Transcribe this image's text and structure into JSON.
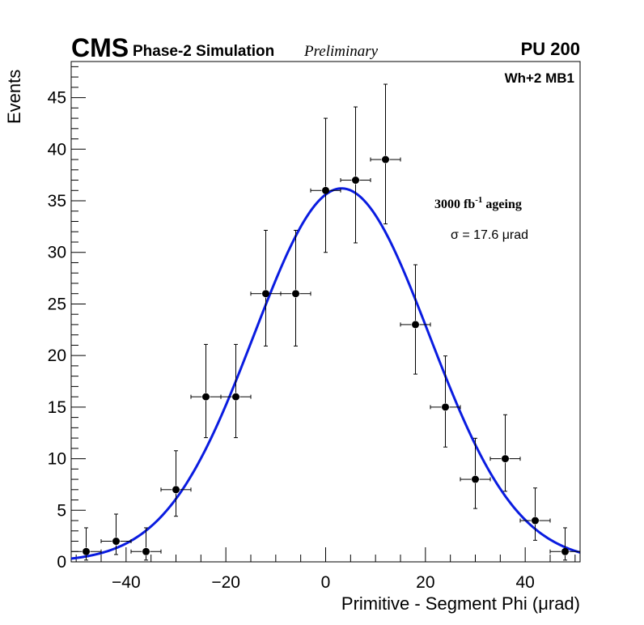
{
  "header": {
    "experiment": "CMS",
    "subtitle": "Phase-2 Simulation",
    "status": "Preliminary",
    "pileup": "PU 200",
    "station": "Wh+2 MB1"
  },
  "annotations": {
    "lumi_value": "3000 fb",
    "lumi_exponent": "-1",
    "lumi_suffix": " ageing",
    "sigma_label": "σ = 17.6 μrad"
  },
  "colors": {
    "fit": "#0a1ce0",
    "points": "#000000",
    "axis": "#000000"
  },
  "chart_data": {
    "type": "scatter",
    "title": "",
    "xlabel": "Primitive - Segment Phi (μrad)",
    "ylabel": "Events",
    "xlim": [
      -51,
      51
    ],
    "ylim": [
      0,
      48.5
    ],
    "x_ticks": [
      -40,
      -20,
      0,
      20,
      40
    ],
    "x_tick_labels": [
      "−40",
      "−20",
      "0",
      "20",
      "40"
    ],
    "y_ticks": [
      0,
      5,
      10,
      15,
      20,
      25,
      30,
      35,
      40,
      45
    ],
    "y_tick_labels": [
      "0",
      "5",
      "10",
      "15",
      "20",
      "25",
      "30",
      "35",
      "40",
      "45"
    ],
    "bin_width": 6,
    "series": [
      {
        "name": "Simulation",
        "x": [
          -48,
          -42,
          -36,
          -30,
          -24,
          -18,
          -12,
          -6,
          0,
          6,
          12,
          18,
          24,
          30,
          36,
          42,
          48
        ],
        "y": [
          1,
          2,
          1,
          7,
          16,
          16,
          26,
          26,
          36,
          37,
          39,
          23,
          15,
          8,
          10,
          4,
          1
        ],
        "y_err_low": [
          0.83,
          1.29,
          0.83,
          2.58,
          3.96,
          3.96,
          5.08,
          5.08,
          6.0,
          6.08,
          6.24,
          4.8,
          3.87,
          2.83,
          3.16,
          1.91,
          0.83
        ],
        "y_err_high": [
          2.3,
          2.63,
          2.3,
          3.77,
          5.08,
          5.08,
          6.14,
          6.14,
          7.0,
          7.1,
          7.3,
          5.8,
          4.96,
          3.98,
          4.26,
          3.16,
          2.3
        ]
      }
    ],
    "fit": {
      "name": "Gaussian fit",
      "function": "gaussian",
      "amplitude": 36.2,
      "mean": 3.2,
      "sigma": 17.6
    }
  }
}
